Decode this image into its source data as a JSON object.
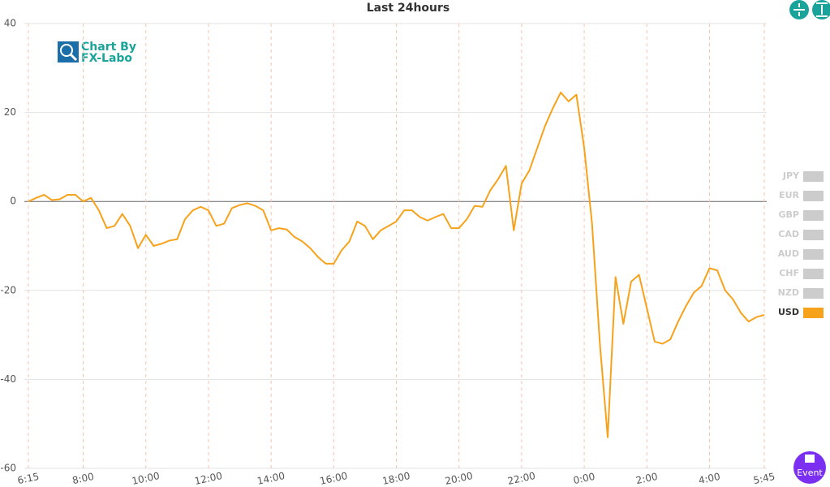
{
  "chart_data": {
    "type": "line",
    "title": "Last 24hours",
    "categories": [
      "6:15",
      null,
      null,
      null,
      null,
      null,
      null,
      "8:00",
      null,
      null,
      null,
      null,
      null,
      null,
      null,
      "10:00",
      null,
      null,
      null,
      null,
      null,
      null,
      null,
      "12:00",
      null,
      null,
      null,
      null,
      null,
      null,
      null,
      "14:00",
      null,
      null,
      null,
      null,
      null,
      null,
      null,
      "16:00",
      null,
      null,
      null,
      null,
      null,
      null,
      null,
      "18:00",
      null,
      null,
      null,
      null,
      null,
      null,
      null,
      "20:00",
      null,
      null,
      null,
      null,
      null,
      null,
      null,
      "22:00",
      null,
      null,
      null,
      null,
      null,
      null,
      null,
      "0:00",
      null,
      null,
      null,
      null,
      null,
      null,
      null,
      "2:00",
      null,
      null,
      null,
      null,
      null,
      null,
      null,
      "4:00",
      null,
      null,
      null,
      null,
      null,
      null,
      "5:45"
    ],
    "series": [
      {
        "name": "USD",
        "color": "#f7a21b",
        "values": [
          0,
          0.8,
          1.5,
          0.3,
          0.5,
          1.5,
          1.5,
          0,
          0.8,
          -2,
          -6,
          -5.5,
          -2.8,
          -5.5,
          -10.5,
          -7.5,
          -10,
          -9.5,
          -8.8,
          -8.5,
          -4,
          -2,
          -1.2,
          -2,
          -5.5,
          -5,
          -1.5,
          -0.8,
          -0.4,
          -1,
          -2,
          -6.5,
          -6,
          -6.3,
          -8,
          -9,
          -10.5,
          -12.5,
          -14,
          -14,
          -11,
          -9,
          -4.5,
          -5.5,
          -8.5,
          -6.5,
          -5.5,
          -4.5,
          -2,
          -2,
          -3.5,
          -4.3,
          -3.5,
          -2.8,
          -6,
          -6,
          -4,
          -1,
          -1.2,
          2.5,
          5,
          8,
          -6.5,
          4,
          7,
          12,
          17,
          21,
          24.5,
          22.5,
          24,
          12,
          -5,
          -32,
          -53,
          -17,
          -27.5,
          -18,
          -16.5,
          -24,
          -31.5,
          -32,
          -31,
          -27,
          -23.5,
          -20.5,
          -19,
          -15,
          -15.5,
          -20,
          -22,
          -25,
          -27,
          -26,
          -25.5
        ]
      }
    ],
    "hidden_series": [
      "JPY",
      "EUR",
      "GBP",
      "CAD",
      "AUD",
      "CHF",
      "NZD"
    ],
    "ylim": [
      -60,
      40
    ],
    "yticks": [
      -60,
      -40,
      -20,
      0,
      20,
      40
    ],
    "grid": true
  },
  "logo": {
    "line1": "Chart By",
    "line2": "FX-Labo"
  },
  "buttons": {
    "event": "Event"
  }
}
